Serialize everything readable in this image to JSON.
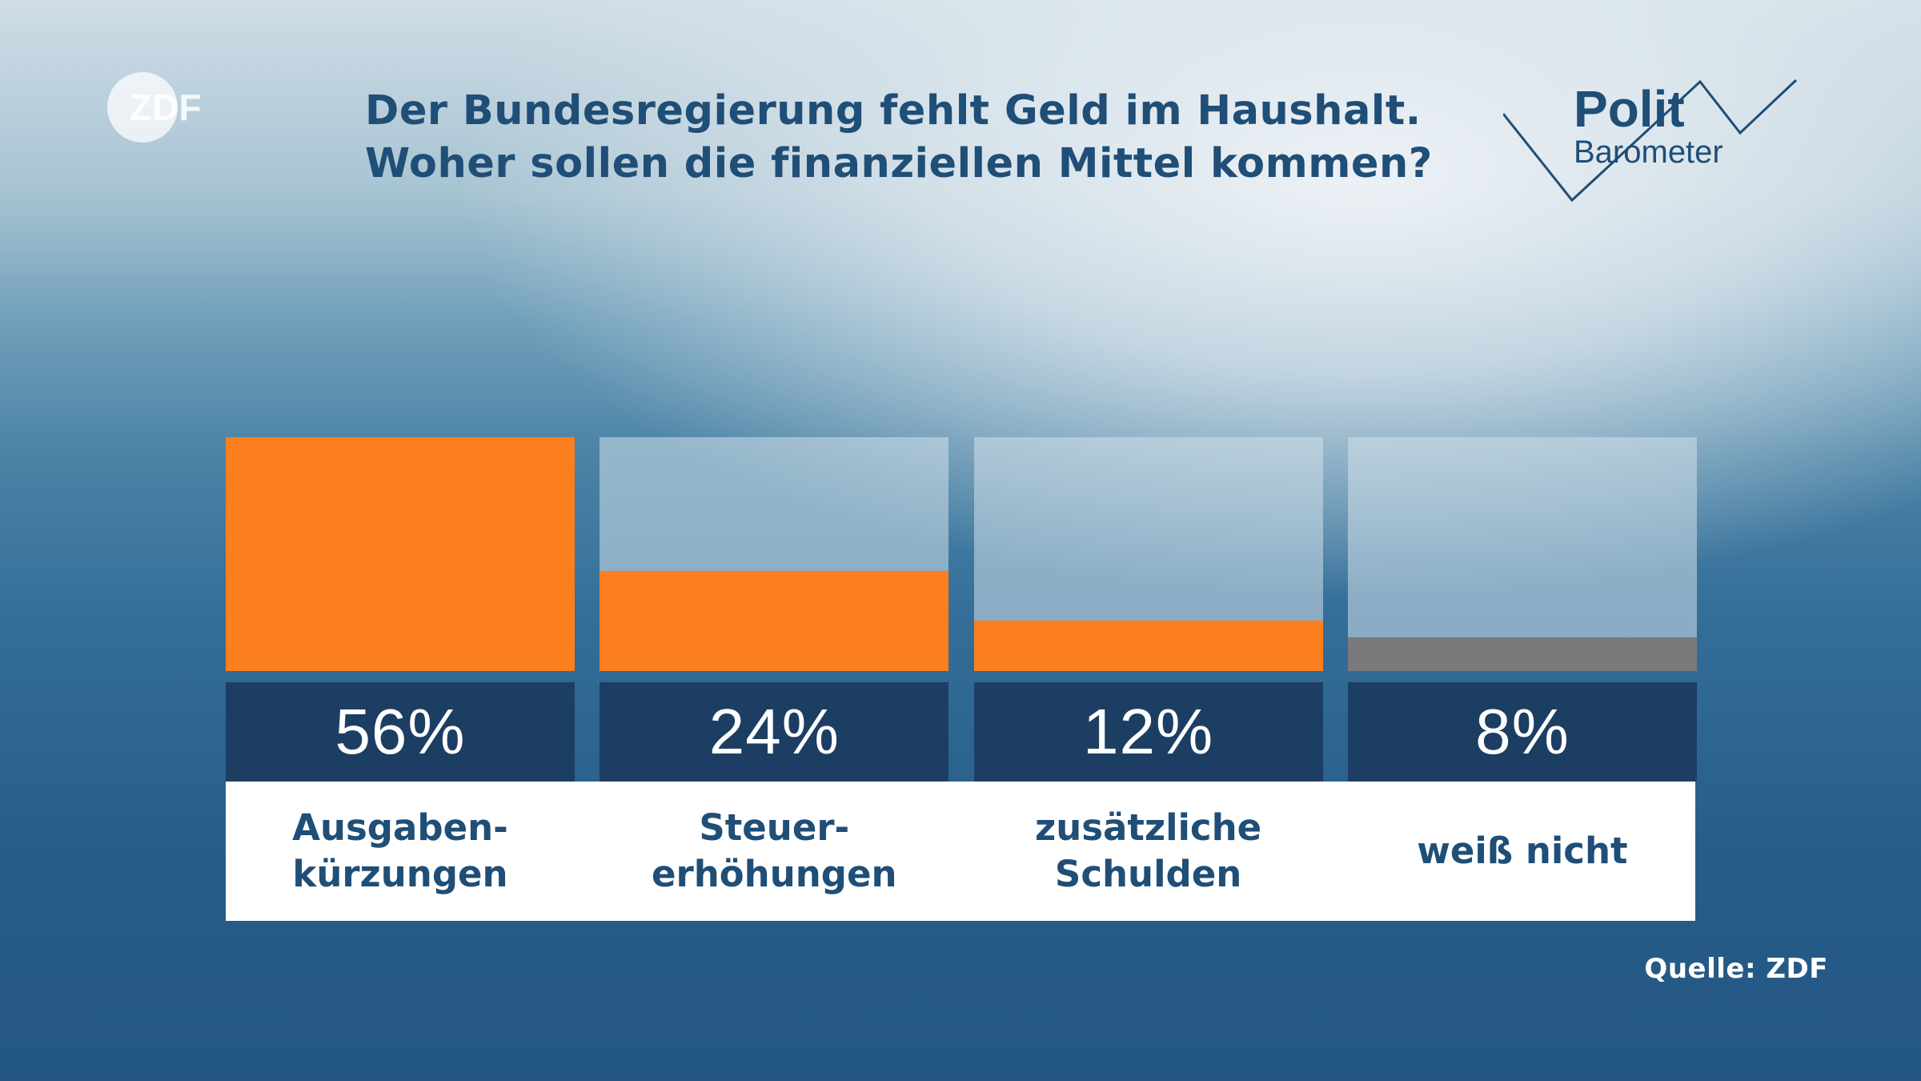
{
  "logo": {
    "text": "ZDF"
  },
  "title": {
    "line1": "Der Bundesregierung fehlt Geld im Haushalt.",
    "line2": "Woher sollen die finanziellen Mittel kommen?"
  },
  "politbarometer": {
    "word1": "Polit",
    "word2": "Barometer"
  },
  "source": "Quelle: ZDF",
  "colors": {
    "accent": "#fb7f1e",
    "neutral": "#7a7a7c",
    "value_box": "#1d3e63",
    "text": "#1f4e77"
  },
  "chart_data": {
    "type": "bar",
    "title": "Der Bundesregierung fehlt Geld im Haushalt. Woher sollen die finanziellen Mittel kommen?",
    "categories": [
      "Ausgaben-kürzungen",
      "Steuer-erhöhungen",
      "zusätzliche Schulden",
      "weiß nicht"
    ],
    "values": [
      56,
      24,
      12,
      8
    ],
    "value_labels": [
      "56%",
      "24%",
      "12%",
      "8%"
    ],
    "label_lines": [
      [
        "Ausgaben-",
        "kürzungen"
      ],
      [
        "Steuer-",
        "erhöhungen"
      ],
      [
        "zusätzliche",
        "Schulden"
      ],
      [
        "weiß nicht"
      ]
    ],
    "bar_colors": [
      "#fb7f1e",
      "#fb7f1e",
      "#fb7f1e",
      "#7a7a7c"
    ],
    "ylim": [
      0,
      56
    ],
    "unit": "%"
  }
}
